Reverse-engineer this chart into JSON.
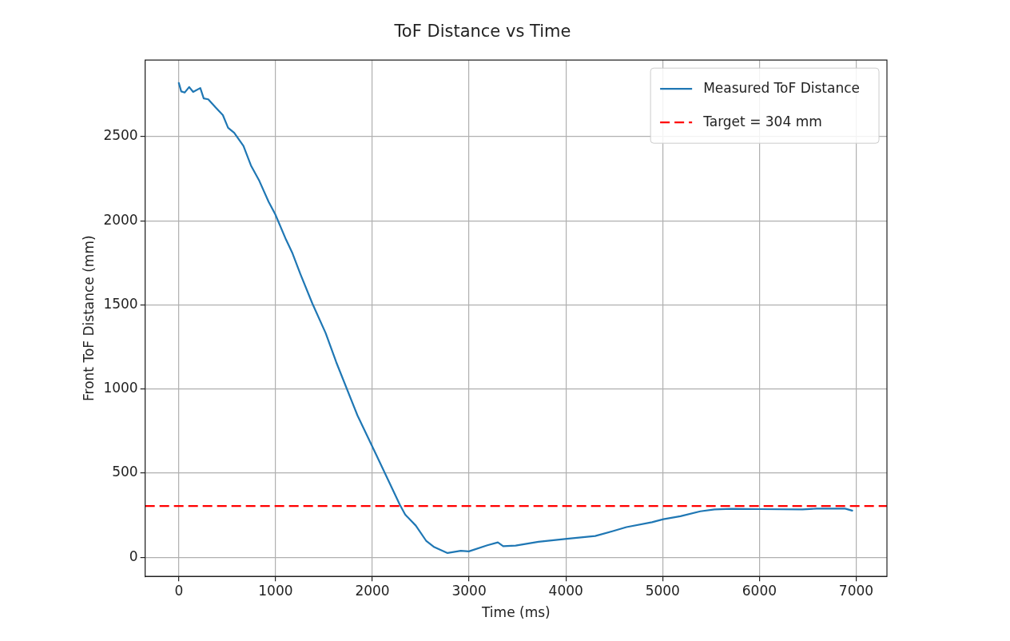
{
  "chart_data": {
    "type": "line",
    "title": "ToF Distance vs Time",
    "xlabel": "Time (ms)",
    "ylabel": "Front ToF Distance (mm)",
    "xlim": [
      -348,
      7318
    ],
    "ylim": [
      -114,
      2955
    ],
    "xticks": [
      0,
      1000,
      2000,
      3000,
      4000,
      5000,
      6000,
      7000
    ],
    "yticks": [
      0,
      500,
      1000,
      1500,
      2000,
      2500
    ],
    "grid": true,
    "legend": "top right",
    "marker": "none",
    "line_style": "solid",
    "ref_lines": [
      {
        "axis": "y",
        "value": 304,
        "label": "Target = 304 mm",
        "color": "#ff0000",
        "line_style": "dashed"
      }
    ],
    "series": [
      {
        "name": "Measured ToF Distance",
        "color": "#1f77b4",
        "x": [
          0,
          25,
          60,
          107,
          148,
          222,
          257,
          304,
          381,
          455,
          509,
          572,
          668,
          745,
          832,
          928,
          997,
          1107,
          1175,
          1257,
          1380,
          1517,
          1627,
          1846,
          2038,
          2284,
          2339,
          2449,
          2558,
          2640,
          2777,
          2914,
          2997,
          3188,
          3297,
          3352,
          3481,
          3716,
          4010,
          4303,
          4479,
          4626,
          4890,
          5007,
          5184,
          5389,
          5536,
          5712,
          6006,
          6445,
          6592,
          6886,
          6959
        ],
        "values": [
          2819,
          2769,
          2762,
          2795,
          2766,
          2789,
          2727,
          2722,
          2673,
          2628,
          2553,
          2523,
          2445,
          2329,
          2237,
          2113,
          2038,
          1889,
          1806,
          1682,
          1508,
          1333,
          1159,
          843,
          611,
          312,
          254,
          188,
          96,
          60,
          25,
          38,
          35,
          71,
          88,
          66,
          69,
          92,
          110,
          126,
          154,
          179,
          208,
          226,
          244,
          273,
          284,
          288,
          286,
          284,
          289,
          289,
          277
        ]
      }
    ]
  }
}
